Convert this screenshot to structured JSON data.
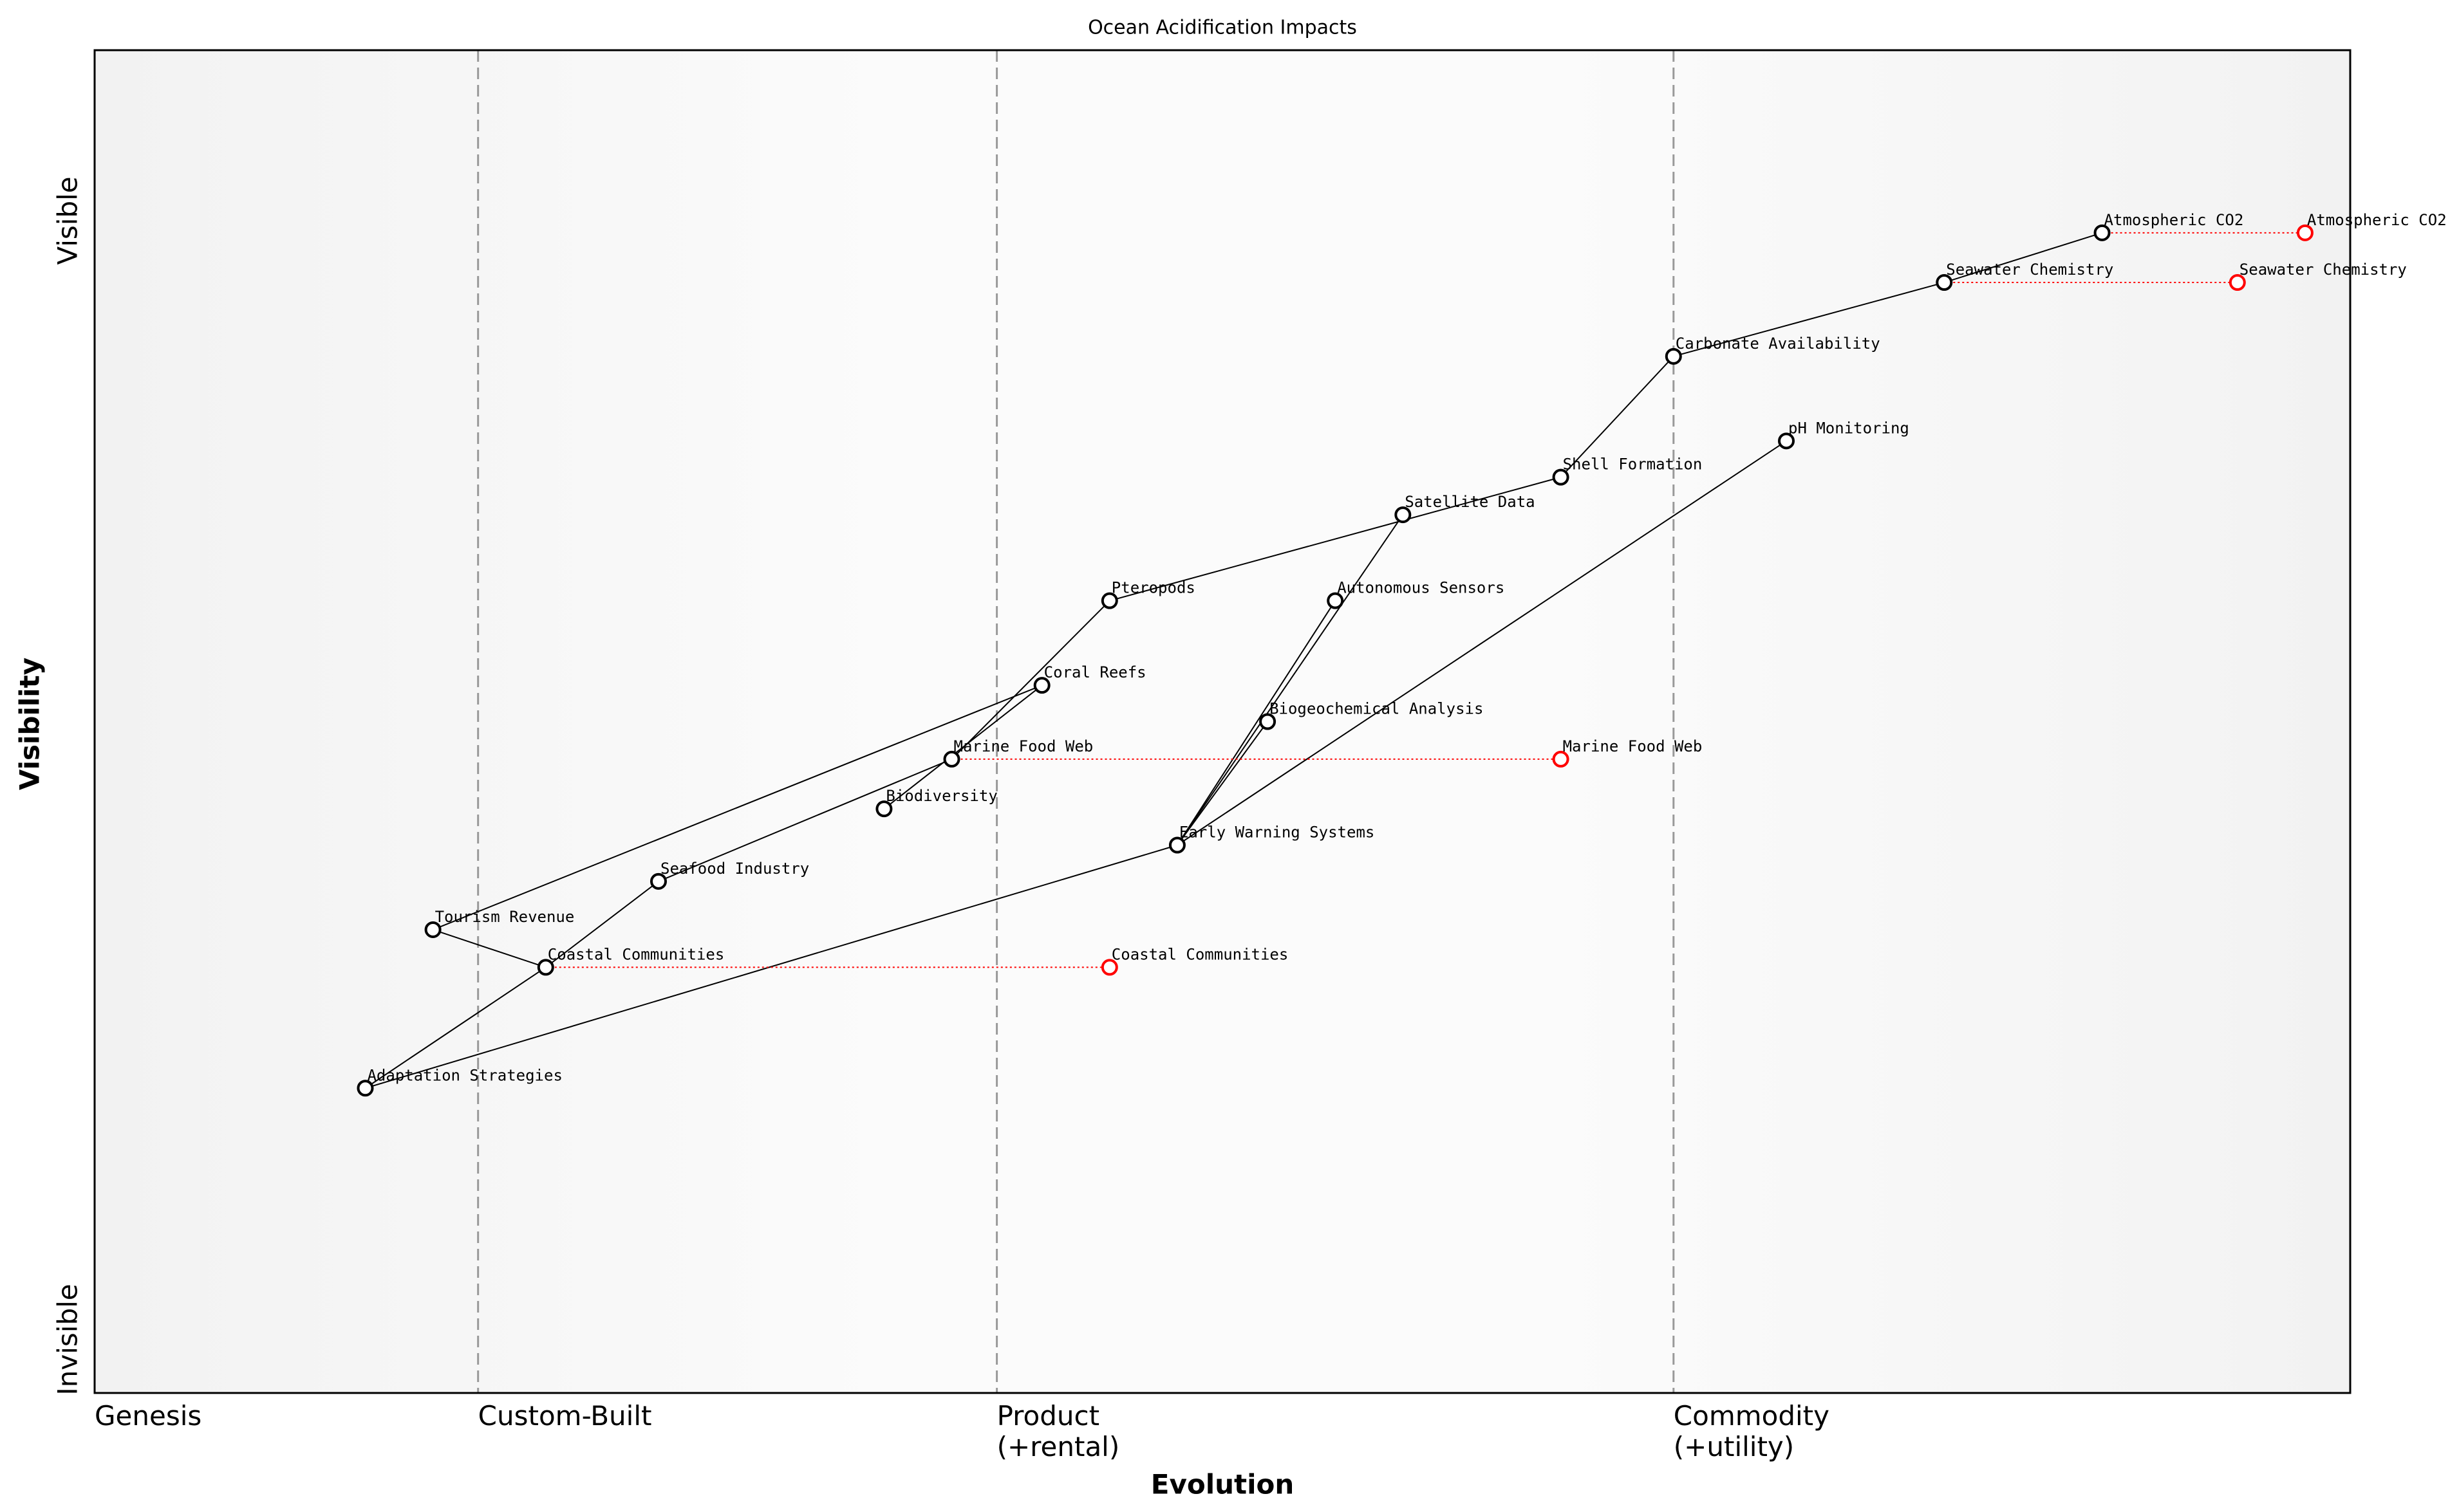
{
  "chart_data": {
    "type": "wardley",
    "title": "Ocean Acidification Impacts",
    "x_label": "Evolution",
    "y_label": "Visibility",
    "xlim": [
      0,
      1
    ],
    "ylim": [
      0,
      1
    ],
    "xticks": [
      {
        "value": 0,
        "label": [
          "Genesis"
        ]
      },
      {
        "value": 0.17,
        "label": [
          "Custom-Built"
        ]
      },
      {
        "value": 0.4,
        "label": [
          "Product",
          "(+rental)"
        ]
      },
      {
        "value": 0.7,
        "label": [
          "Commodity",
          "(+utility)"
        ]
      }
    ],
    "y_ends": [
      "Invisible",
      "Visible"
    ],
    "components": [
      {
        "name": "Atmospheric CO2",
        "x": 0.89,
        "y": 0.864
      },
      {
        "name": "Seawater Chemistry",
        "x": 0.82,
        "y": 0.827
      },
      {
        "name": "Carbonate Availability",
        "x": 0.7,
        "y": 0.772
      },
      {
        "name": "pH Monitoring",
        "x": 0.75,
        "y": 0.709
      },
      {
        "name": "Shell Formation",
        "x": 0.65,
        "y": 0.682
      },
      {
        "name": "Satellite Data",
        "x": 0.58,
        "y": 0.654
      },
      {
        "name": "Pteropods",
        "x": 0.45,
        "y": 0.59
      },
      {
        "name": "Autonomous Sensors",
        "x": 0.55,
        "y": 0.59
      },
      {
        "name": "Coral Reefs",
        "x": 0.42,
        "y": 0.527
      },
      {
        "name": "Biogeochemical Analysis",
        "x": 0.52,
        "y": 0.5
      },
      {
        "name": "Marine Food Web",
        "x": 0.38,
        "y": 0.472
      },
      {
        "name": "Biodiversity",
        "x": 0.35,
        "y": 0.435
      },
      {
        "name": "Early Warning Systems",
        "x": 0.48,
        "y": 0.408
      },
      {
        "name": "Seafood Industry",
        "x": 0.25,
        "y": 0.381
      },
      {
        "name": "Tourism Revenue",
        "x": 0.15,
        "y": 0.345
      },
      {
        "name": "Coastal Communities",
        "x": 0.2,
        "y": 0.317
      },
      {
        "name": "Adaptation Strategies",
        "x": 0.12,
        "y": 0.227
      }
    ],
    "links": [
      [
        0,
        1
      ],
      [
        1,
        2
      ],
      [
        2,
        4
      ],
      [
        4,
        6
      ],
      [
        6,
        10
      ],
      [
        8,
        11
      ],
      [
        8,
        14
      ],
      [
        10,
        13
      ],
      [
        13,
        15
      ],
      [
        14,
        15
      ],
      [
        15,
        16
      ],
      [
        16,
        12
      ],
      [
        3,
        12
      ],
      [
        5,
        12
      ],
      [
        7,
        12
      ],
      [
        9,
        12
      ]
    ],
    "evolutions": [
      {
        "from": 0,
        "name": "Atmospheric CO2",
        "x": 0.98
      },
      {
        "from": 1,
        "name": "Seawater Chemistry",
        "x": 0.95
      },
      {
        "from": 10,
        "name": "Marine Food Web",
        "x": 0.65
      },
      {
        "from": 15,
        "name": "Coastal Communities",
        "x": 0.45
      }
    ]
  }
}
